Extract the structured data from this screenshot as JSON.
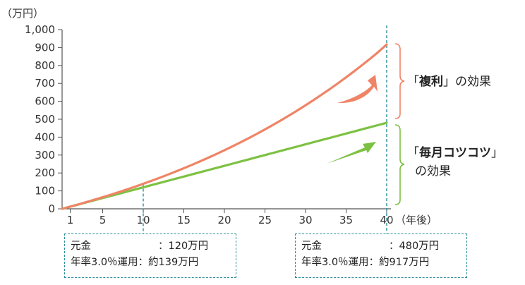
{
  "chart_data": {
    "type": "line",
    "unit_label": "（万円）",
    "x_unit_label": "（年後）",
    "x": [
      1,
      2,
      3,
      4,
      5,
      6,
      7,
      8,
      9,
      10,
      11,
      12,
      13,
      14,
      15,
      16,
      17,
      18,
      19,
      20,
      21,
      22,
      23,
      24,
      25,
      26,
      27,
      28,
      29,
      30,
      31,
      32,
      33,
      34,
      35,
      36,
      37,
      38,
      39,
      40
    ],
    "x_ticks": [
      1,
      5,
      10,
      15,
      20,
      25,
      30,
      35,
      40
    ],
    "x_tick_labels": [
      "1",
      "5",
      "10",
      "15",
      "20",
      "25",
      "30",
      "35",
      "40"
    ],
    "y_ticks": [
      0,
      100,
      200,
      300,
      400,
      500,
      600,
      700,
      800,
      900,
      1000
    ],
    "y_tick_labels": [
      "0",
      "100",
      "200",
      "300",
      "400",
      "500",
      "600",
      "700",
      "800",
      "900",
      "1,000"
    ],
    "xlim": [
      0,
      40
    ],
    "ylim": [
      0,
      1000
    ],
    "series": [
      {
        "color": "#ef8466",
        "values": [
          12.2,
          24.7,
          37.7,
          51.0,
          64.7,
          78.8,
          93.3,
          108.3,
          123.7,
          139.6,
          156.0,
          172.8,
          190.2,
          208.0,
          226.4,
          245.3,
          264.8,
          284.9,
          305.5,
          326.8,
          348.7,
          371.3,
          394.5,
          418.4,
          443.1,
          468.4,
          494.6,
          521.5,
          549.2,
          577.8,
          607.2,
          637.5,
          668.7,
          700.8,
          733.9,
          768.0,
          803.1,
          839.3,
          876.5,
          917.0
        ]
      },
      {
        "color": "#7dc142",
        "values": [
          12,
          24,
          36,
          48,
          60,
          72,
          84,
          96,
          108,
          120,
          132,
          144,
          156,
          168,
          180,
          192,
          204,
          216,
          228,
          240,
          252,
          264,
          276,
          288,
          300,
          312,
          324,
          336,
          348,
          360,
          372,
          384,
          396,
          408,
          420,
          432,
          444,
          456,
          468,
          480
        ]
      }
    ],
    "annotations": {
      "compound": {
        "text_pre": "「",
        "text_bold": "複利",
        "text_post": "」の効果"
      },
      "saving": {
        "line1_pre": "「",
        "line1_bold": "毎月コツコツ",
        "line1_post": "」",
        "line2": "の効果"
      }
    },
    "grid": false,
    "legend": "none"
  },
  "info_boxes": [
    {
      "principal_key": "元金",
      "principal_val": "：120万円",
      "invest_key": "年率3.0％運用",
      "invest_val": "：約139万円"
    },
    {
      "principal_key": "元金",
      "principal_val": "：480万円",
      "invest_key": "年率3.0％運用",
      "invest_val": "：約917万円"
    }
  ],
  "colors": {
    "compound": "#ef8466",
    "saving": "#7dc142",
    "dashed": "#2a8d9c",
    "axis": "#555555"
  }
}
